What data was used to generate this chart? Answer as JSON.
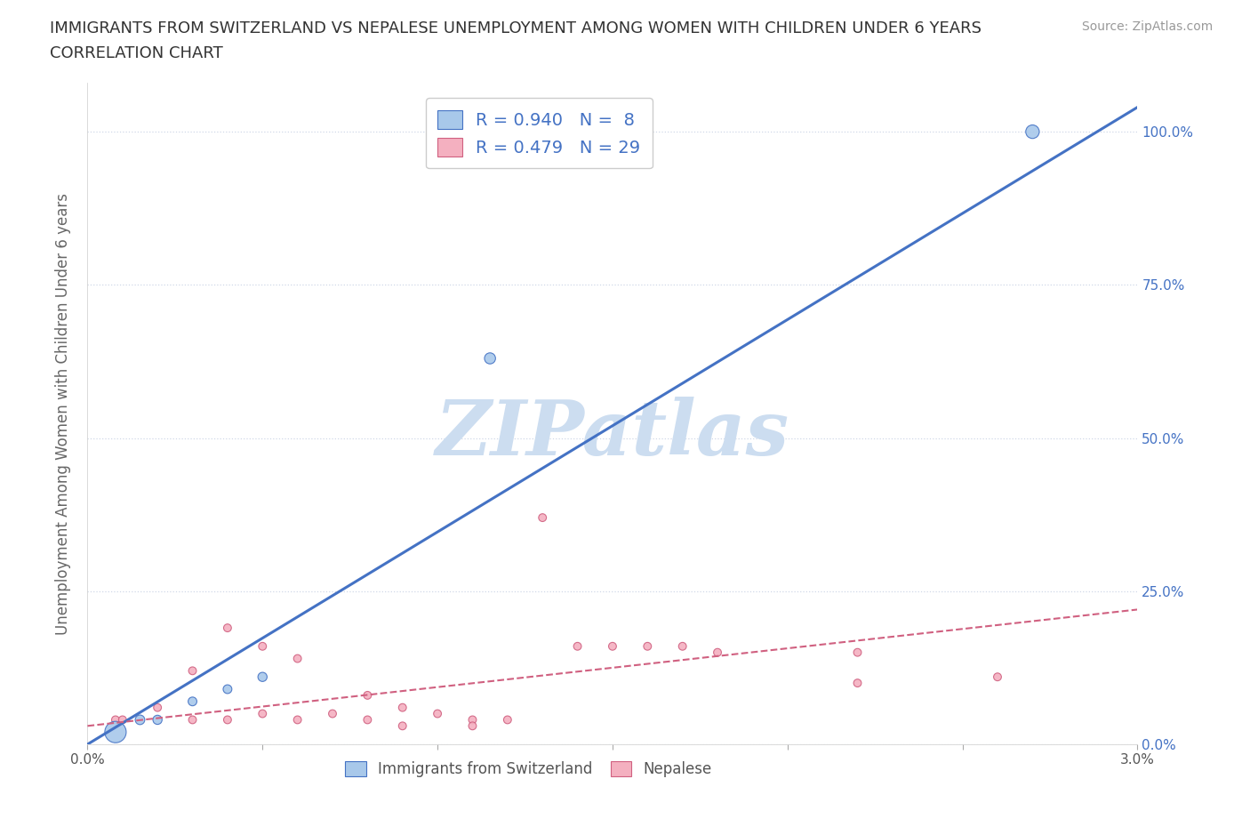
{
  "title_line1": "IMMIGRANTS FROM SWITZERLAND VS NEPALESE UNEMPLOYMENT AMONG WOMEN WITH CHILDREN UNDER 6 YEARS",
  "title_line2": "CORRELATION CHART",
  "source": "Source: ZipAtlas.com",
  "ylabel": "Unemployment Among Women with Children Under 6 years",
  "xmin": 0.0,
  "xmax": 0.03,
  "ymin": 0.0,
  "ymax": 1.08,
  "yticks": [
    0.0,
    0.25,
    0.5,
    0.75,
    1.0
  ],
  "ytick_labels": [
    "0.0%",
    "25.0%",
    "50.0%",
    "75.0%",
    "100.0%"
  ],
  "swiss_color": "#a8c8ea",
  "swiss_line_color": "#4472c4",
  "nepal_color": "#f4b0c0",
  "nepal_line_color": "#d06080",
  "r_swiss": 0.94,
  "n_swiss": 8,
  "r_nepal": 0.479,
  "n_nepal": 29,
  "legend_r_color": "#4472c4",
  "background_color": "#ffffff",
  "grid_color": "#d0d8e8",
  "swiss_scatter_x": [
    0.0008,
    0.0015,
    0.002,
    0.003,
    0.004,
    0.005,
    0.0115,
    0.027
  ],
  "swiss_scatter_y": [
    0.02,
    0.04,
    0.04,
    0.07,
    0.09,
    0.11,
    0.63,
    1.0
  ],
  "swiss_sizes": [
    300,
    60,
    55,
    50,
    50,
    55,
    80,
    120
  ],
  "nepal_scatter_x": [
    0.0008,
    0.001,
    0.002,
    0.003,
    0.003,
    0.004,
    0.004,
    0.005,
    0.005,
    0.006,
    0.006,
    0.007,
    0.008,
    0.008,
    0.009,
    0.009,
    0.01,
    0.011,
    0.011,
    0.012,
    0.013,
    0.014,
    0.015,
    0.016,
    0.017,
    0.018,
    0.022,
    0.022,
    0.026
  ],
  "nepal_scatter_y": [
    0.04,
    0.04,
    0.06,
    0.04,
    0.12,
    0.04,
    0.19,
    0.05,
    0.16,
    0.04,
    0.14,
    0.05,
    0.04,
    0.08,
    0.03,
    0.06,
    0.05,
    0.04,
    0.03,
    0.04,
    0.37,
    0.16,
    0.16,
    0.16,
    0.16,
    0.15,
    0.1,
    0.15,
    0.11
  ],
  "nepal_sizes": [
    40,
    40,
    40,
    40,
    40,
    40,
    40,
    40,
    40,
    40,
    40,
    40,
    40,
    40,
    40,
    40,
    40,
    40,
    40,
    40,
    40,
    40,
    40,
    40,
    40,
    40,
    40,
    40,
    40
  ],
  "swiss_line_x": [
    0.0,
    0.03
  ],
  "swiss_line_y": [
    0.0,
    1.04
  ],
  "nepal_line_x": [
    0.0,
    0.03
  ],
  "nepal_line_y": [
    0.03,
    0.22
  ],
  "watermark": "ZIPatlas",
  "watermark_color": "#ccddf0",
  "title_fontsize": 13,
  "source_fontsize": 10,
  "tick_label_fontsize": 11,
  "ylabel_fontsize": 12
}
